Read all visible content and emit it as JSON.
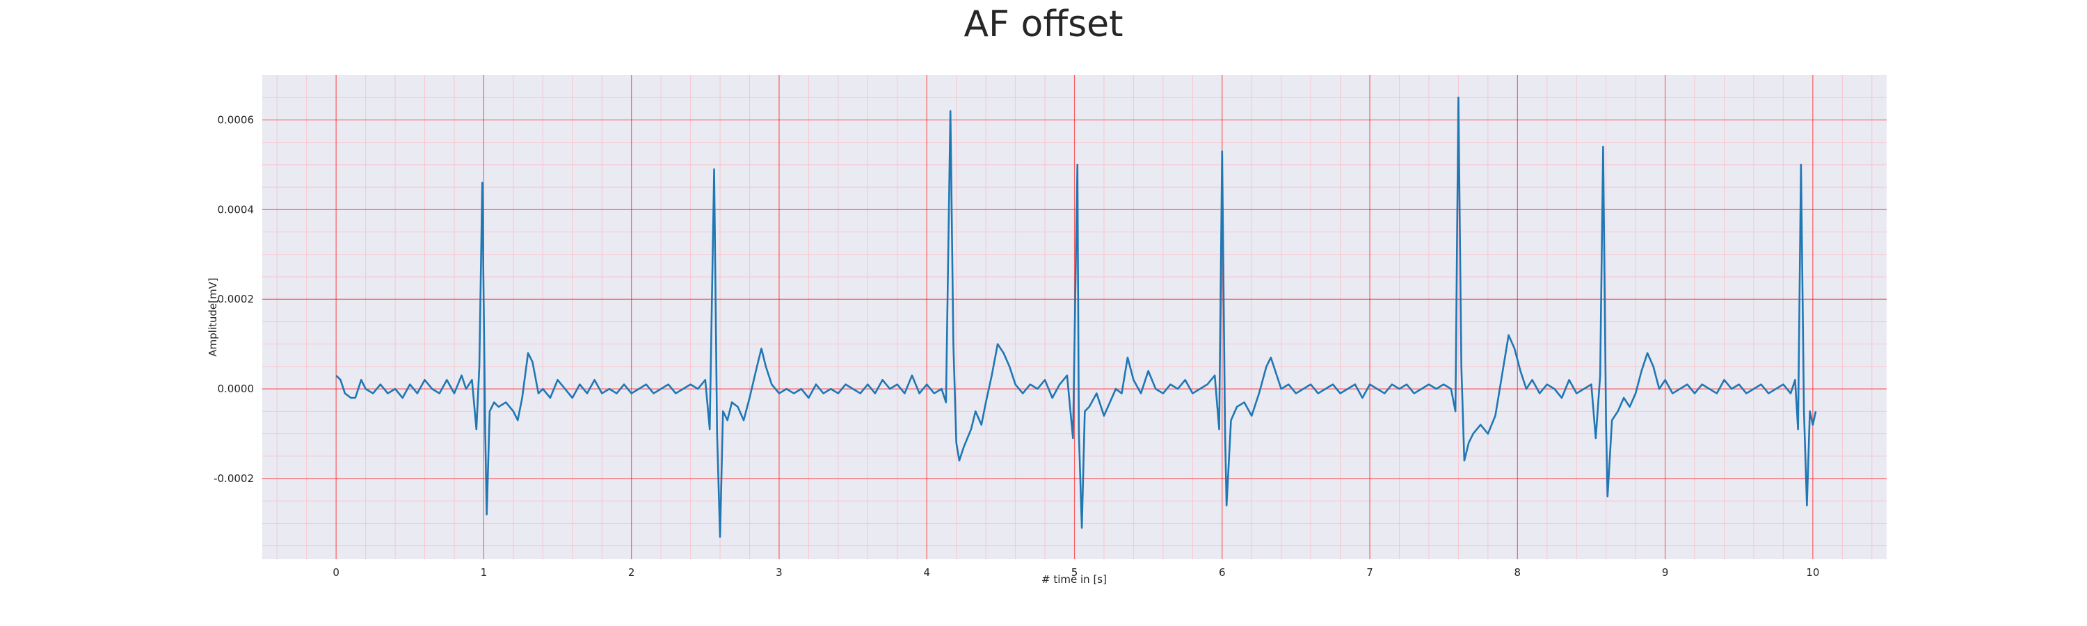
{
  "chart_data": {
    "type": "line",
    "title": "AF offset",
    "xlabel": "# time in [s]",
    "ylabel": "Amplitude[mV]",
    "color": "#1f77b4",
    "grid": true,
    "minor_grid": true,
    "xlim": [
      -0.5,
      10.5
    ],
    "ylim": [
      -0.00038,
      0.0007
    ],
    "xticks": [
      0,
      1,
      2,
      3,
      4,
      5,
      6,
      7,
      8,
      9,
      10
    ],
    "yticks": [
      -0.0002,
      {
        "value": 0,
        "label": "0.0000"
      },
      0.0002,
      0.0004,
      0.0006
    ],
    "x_minor_ticks": [
      -0.4,
      -0.2,
      0.2,
      0.4,
      0.6,
      0.8,
      1.2,
      1.4,
      1.6,
      1.8,
      2.2,
      2.4,
      2.6,
      2.8,
      3.2,
      3.4,
      3.6,
      3.8,
      4.2,
      4.4,
      4.6,
      4.8,
      5.2,
      5.4,
      5.6,
      5.8,
      6.2,
      6.4,
      6.6,
      6.8,
      7.2,
      7.4,
      7.6,
      7.8,
      8.2,
      8.4,
      8.6,
      8.8,
      9.2,
      9.4,
      9.6,
      9.8,
      10.2,
      10.4
    ],
    "y_minor_ticks": [
      -0.00035,
      -0.0003,
      -0.00025,
      -0.00015,
      -0.0001,
      -5e-05,
      5e-05,
      0.0001,
      0.00015,
      0.00025,
      0.0003,
      0.00035,
      0.00045,
      0.0005,
      0.00055,
      0.00065
    ],
    "x": [
      0,
      0.03,
      0.06,
      0.1,
      0.13,
      0.17,
      0.2,
      0.25,
      0.3,
      0.35,
      0.4,
      0.45,
      0.5,
      0.55,
      0.6,
      0.65,
      0.7,
      0.75,
      0.8,
      0.85,
      0.88,
      0.92,
      0.95,
      0.97,
      0.99,
      1.01,
      1.02,
      1.04,
      1.07,
      1.1,
      1.15,
      1.2,
      1.23,
      1.26,
      1.3,
      1.33,
      1.37,
      1.4,
      1.45,
      1.5,
      1.55,
      1.6,
      1.65,
      1.7,
      1.75,
      1.8,
      1.85,
      1.9,
      1.95,
      2,
      2.05,
      2.1,
      2.15,
      2.2,
      2.25,
      2.3,
      2.35,
      2.4,
      2.45,
      2.5,
      2.53,
      2.56,
      2.58,
      2.6,
      2.62,
      2.65,
      2.68,
      2.72,
      2.76,
      2.8,
      2.85,
      2.88,
      2.91,
      2.95,
      3,
      3.05,
      3.1,
      3.15,
      3.2,
      3.25,
      3.3,
      3.35,
      3.4,
      3.45,
      3.5,
      3.55,
      3.6,
      3.65,
      3.7,
      3.75,
      3.8,
      3.85,
      3.9,
      3.95,
      4,
      4.05,
      4.1,
      4.13,
      4.16,
      4.18,
      4.2,
      4.22,
      4.25,
      4.3,
      4.33,
      4.37,
      4.4,
      4.44,
      4.48,
      4.52,
      4.56,
      4.6,
      4.65,
      4.7,
      4.75,
      4.8,
      4.85,
      4.9,
      4.95,
      4.99,
      5.02,
      5.03,
      5.05,
      5.07,
      5.1,
      5.15,
      5.2,
      5.24,
      5.28,
      5.32,
      5.36,
      5.4,
      5.45,
      5.5,
      5.55,
      5.6,
      5.65,
      5.7,
      5.75,
      5.8,
      5.85,
      5.9,
      5.95,
      5.98,
      6,
      6.02,
      6.03,
      6.06,
      6.1,
      6.15,
      6.2,
      6.25,
      6.3,
      6.33,
      6.37,
      6.4,
      6.45,
      6.5,
      6.55,
      6.6,
      6.65,
      6.7,
      6.75,
      6.8,
      6.85,
      6.9,
      6.95,
      7,
      7.05,
      7.1,
      7.15,
      7.2,
      7.25,
      7.3,
      7.35,
      7.4,
      7.45,
      7.5,
      7.55,
      7.58,
      7.6,
      7.62,
      7.64,
      7.67,
      7.7,
      7.75,
      7.8,
      7.85,
      7.9,
      7.94,
      7.98,
      8.02,
      8.06,
      8.1,
      8.15,
      8.2,
      8.25,
      8.3,
      8.35,
      8.4,
      8.45,
      8.5,
      8.53,
      8.56,
      8.58,
      8.6,
      8.61,
      8.64,
      8.68,
      8.72,
      8.76,
      8.8,
      8.84,
      8.88,
      8.92,
      8.96,
      9,
      9.05,
      9.1,
      9.15,
      9.2,
      9.25,
      9.3,
      9.35,
      9.4,
      9.45,
      9.5,
      9.55,
      9.6,
      9.65,
      9.7,
      9.75,
      9.8,
      9.85,
      9.88,
      9.9,
      9.92,
      9.94,
      9.96,
      9.98,
      10,
      10.02
    ],
    "values": [
      3e-05,
      2e-05,
      -1e-05,
      -2e-05,
      -2e-05,
      2e-05,
      0,
      -1e-05,
      1e-05,
      -1e-05,
      0,
      -2e-05,
      1e-05,
      -1e-05,
      2e-05,
      0,
      -1e-05,
      2e-05,
      -1e-05,
      3e-05,
      0,
      2e-05,
      -9e-05,
      5e-05,
      0.00046,
      -0.0001,
      -0.00028,
      -5e-05,
      -3e-05,
      -4e-05,
      -3e-05,
      -5e-05,
      -7e-05,
      -2e-05,
      8e-05,
      6e-05,
      -1e-05,
      0,
      -2e-05,
      2e-05,
      0,
      -2e-05,
      1e-05,
      -1e-05,
      2e-05,
      -1e-05,
      0,
      -1e-05,
      1e-05,
      -1e-05,
      0,
      1e-05,
      -1e-05,
      0,
      1e-05,
      -1e-05,
      0,
      1e-05,
      0,
      2e-05,
      -9e-05,
      0.00049,
      -0.0001,
      -0.00033,
      -5e-05,
      -7e-05,
      -3e-05,
      -4e-05,
      -7e-05,
      -2e-05,
      5e-05,
      9e-05,
      5e-05,
      1e-05,
      -1e-05,
      0,
      -1e-05,
      0,
      -2e-05,
      1e-05,
      -1e-05,
      0,
      -1e-05,
      1e-05,
      0,
      -1e-05,
      1e-05,
      -1e-05,
      2e-05,
      0,
      1e-05,
      -1e-05,
      3e-05,
      -1e-05,
      1e-05,
      -1e-05,
      0,
      -3e-05,
      0.00062,
      0.0001,
      -0.00012,
      -0.00016,
      -0.00013,
      -9e-05,
      -5e-05,
      -8e-05,
      -3e-05,
      3e-05,
      0.0001,
      8e-05,
      5e-05,
      1e-05,
      -1e-05,
      1e-05,
      0,
      2e-05,
      -2e-05,
      1e-05,
      3e-05,
      -0.00011,
      0.0005,
      -0.0001,
      -0.00031,
      -5e-05,
      -4e-05,
      -1e-05,
      -6e-05,
      -3e-05,
      0,
      -1e-05,
      7e-05,
      2e-05,
      -1e-05,
      4e-05,
      0,
      -1e-05,
      1e-05,
      0,
      2e-05,
      -1e-05,
      0,
      1e-05,
      3e-05,
      -9e-05,
      0.00053,
      -0.0001,
      -0.00026,
      -7e-05,
      -4e-05,
      -3e-05,
      -6e-05,
      -1e-05,
      5e-05,
      7e-05,
      3e-05,
      0,
      1e-05,
      -1e-05,
      0,
      1e-05,
      -1e-05,
      0,
      1e-05,
      -1e-05,
      0,
      1e-05,
      -2e-05,
      1e-05,
      0,
      -1e-05,
      1e-05,
      0,
      1e-05,
      -1e-05,
      0,
      1e-05,
      0,
      1e-05,
      0,
      -5e-05,
      0.00065,
      5e-05,
      -0.00016,
      -0.00012,
      -0.0001,
      -8e-05,
      -0.0001,
      -6e-05,
      4e-05,
      0.00012,
      9e-05,
      4e-05,
      0,
      2e-05,
      -1e-05,
      1e-05,
      0,
      -2e-05,
      2e-05,
      -1e-05,
      0,
      1e-05,
      -0.00011,
      3e-05,
      0.00054,
      -8e-05,
      -0.00024,
      -7e-05,
      -5e-05,
      -2e-05,
      -4e-05,
      -1e-05,
      4e-05,
      8e-05,
      5e-05,
      0,
      2e-05,
      -1e-05,
      0,
      1e-05,
      -1e-05,
      1e-05,
      0,
      -1e-05,
      2e-05,
      0,
      1e-05,
      -1e-05,
      0,
      1e-05,
      -1e-05,
      0,
      1e-05,
      -1e-05,
      2e-05,
      -9e-05,
      0.0005,
      -5e-05,
      -0.00026,
      -5e-05,
      -8e-05,
      -5e-05
    ]
  }
}
